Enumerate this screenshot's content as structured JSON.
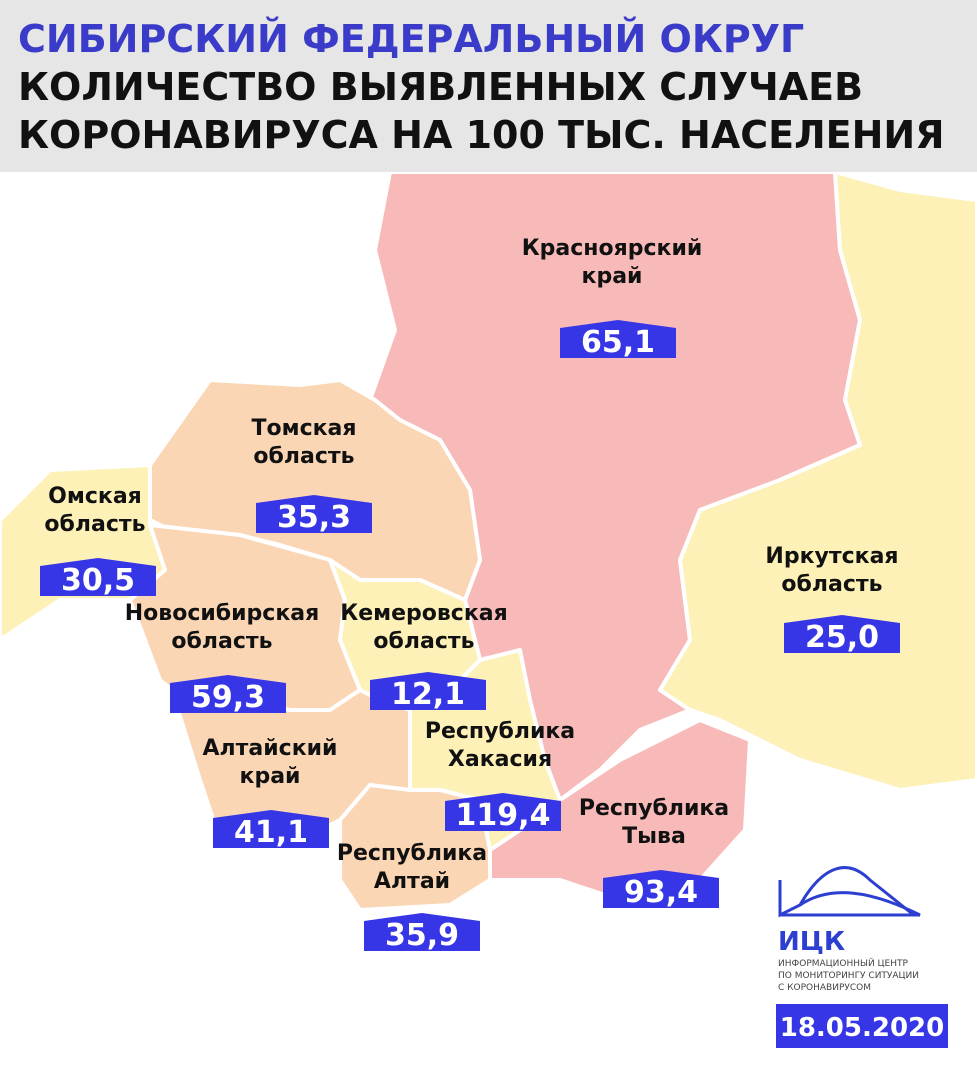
{
  "header": {
    "title": "СИБИРСКИЙ ФЕДЕРАЛЬНЫЙ ОКРУГ",
    "subtitle": [
      "КОЛИЧЕСТВО ВЫЯВЛЕННЫХ СЛУЧАЕВ",
      "КОРОНАВИРУСА НА 100 ТЫС. НАСЕЛЕНИЯ"
    ]
  },
  "regions": [
    {
      "name": [
        "Красноярский",
        "край"
      ],
      "value": "65,1"
    },
    {
      "name": [
        "Томская",
        "область"
      ],
      "value": "35,3"
    },
    {
      "name": [
        "Омская",
        "область"
      ],
      "value": "30,5"
    },
    {
      "name": [
        "Новосибирская",
        "область"
      ],
      "value": "59,3"
    },
    {
      "name": [
        "Кемеровская",
        "область"
      ],
      "value": "12,1"
    },
    {
      "name": [
        "Иркутская",
        "область"
      ],
      "value": "25,0"
    },
    {
      "name": [
        "Алтайский",
        "край"
      ],
      "value": "41,1"
    },
    {
      "name": [
        "Республика",
        "Хакасия"
      ],
      "value": "119,4"
    },
    {
      "name": [
        "Республика",
        "Тыва"
      ],
      "value": "93,4"
    },
    {
      "name": [
        "Республика",
        "Алтай"
      ],
      "value": "35,9"
    }
  ],
  "logo": {
    "abbr": "ИЦК",
    "lines": [
      "ИНФОРМАЦИОННЫЙ ЦЕНТР",
      "ПО МОНИТОРИНГУ СИТУАЦИИ",
      "С КОРОНАВИРУСОМ"
    ]
  },
  "date": "18.05.2020"
}
